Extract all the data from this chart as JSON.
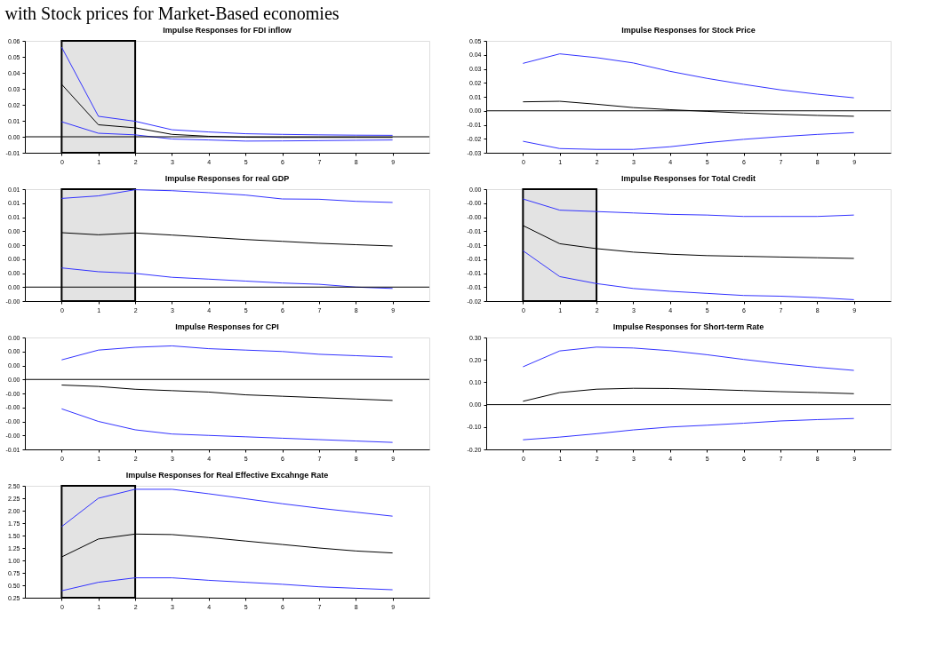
{
  "chart_data": [
    {
      "type": "line",
      "title": "Impulse Responses for FDI inflow",
      "annotations": [
        "with Stock prices for Market-Based economies"
      ],
      "x": [
        0,
        1,
        2,
        3,
        4,
        5,
        6,
        7,
        8,
        9
      ],
      "xlim": [
        -1,
        10
      ],
      "xticks": [
        0,
        1,
        2,
        3,
        4,
        5,
        6,
        7,
        8,
        9
      ],
      "ylim": [
        -0.01,
        0.06
      ],
      "yticks": [
        {
          "value": -0.01,
          "label": "-0.01"
        },
        {
          "value": 0,
          "label": "0.00"
        },
        {
          "value": 0.01,
          "label": "0.01"
        },
        {
          "value": 0.02,
          "label": "0.02"
        },
        {
          "value": 0.03,
          "label": "0.03"
        },
        {
          "value": 0.04,
          "label": "0.04"
        },
        {
          "value": 0.05,
          "label": "0.05"
        },
        {
          "value": 0.06,
          "label": "0.06"
        }
      ],
      "ref_lines": [
        {
          "axis": "y",
          "value": 0,
          "color": "#000000"
        }
      ],
      "bands": [
        {
          "axis": "x",
          "from": 0,
          "to": 2,
          "color": "#e3e3e3"
        }
      ],
      "series": [
        {
          "color": "#3333ff",
          "values": [
            0.056,
            0.0128,
            0.0097,
            0.0044,
            0.003,
            0.0019,
            0.0015,
            0.0012,
            0.001,
            0.0009
          ]
        },
        {
          "color": "#000000",
          "values": [
            0.0328,
            0.0075,
            0.0056,
            0.0015,
            0.0003,
            -0.0003,
            -0.0004,
            -0.0004,
            -0.0004,
            -0.0004
          ]
        },
        {
          "color": "#3333ff",
          "values": [
            0.0094,
            0.0022,
            0.0012,
            -0.0014,
            -0.002,
            -0.0027,
            -0.0026,
            -0.0024,
            -0.0022,
            -0.002
          ]
        }
      ]
    },
    {
      "type": "line",
      "title": "Impulse Responses for Stock Price",
      "x": [
        0,
        1,
        2,
        3,
        4,
        5,
        6,
        7,
        8,
        9
      ],
      "xlim": [
        -1,
        10
      ],
      "xticks": [
        0,
        1,
        2,
        3,
        4,
        5,
        6,
        7,
        8,
        9
      ],
      "ylim": [
        -0.03,
        0.05
      ],
      "yticks": [
        {
          "value": -0.03,
          "label": "-0.03"
        },
        {
          "value": -0.02,
          "label": "-0.02"
        },
        {
          "value": -0.01,
          "label": "-0.01"
        },
        {
          "value": 0,
          "label": "0.00"
        },
        {
          "value": 0.01,
          "label": "0.01"
        },
        {
          "value": 0.02,
          "label": "0.02"
        },
        {
          "value": 0.03,
          "label": "0.03"
        },
        {
          "value": 0.04,
          "label": "0.04"
        },
        {
          "value": 0.05,
          "label": "0.05"
        }
      ],
      "ref_lines": [
        {
          "axis": "y",
          "value": 0,
          "color": "#000000"
        }
      ],
      "series": [
        {
          "color": "#3333ff",
          "values": [
            0.0339,
            0.0407,
            0.038,
            0.0342,
            0.0282,
            0.0232,
            0.0189,
            0.015,
            0.0119,
            0.0093
          ]
        },
        {
          "color": "#000000",
          "values": [
            0.0064,
            0.0068,
            0.0047,
            0.0023,
            0.0008,
            -0.0004,
            -0.0016,
            -0.0025,
            -0.0033,
            -0.0039
          ]
        },
        {
          "color": "#3333ff",
          "values": [
            -0.0218,
            -0.027,
            -0.0276,
            -0.0276,
            -0.0257,
            -0.0228,
            -0.0204,
            -0.0185,
            -0.0169,
            -0.0156
          ]
        }
      ]
    },
    {
      "type": "line",
      "title": "Impulse Responses for real GDP",
      "x": [
        0,
        1,
        2,
        3,
        4,
        5,
        6,
        7,
        8,
        9
      ],
      "xlim": [
        -1,
        10
      ],
      "xticks": [
        0,
        1,
        2,
        3,
        4,
        5,
        6,
        7,
        8,
        9
      ],
      "ylim": [
        -0.001,
        0.007
      ],
      "yticks": [
        {
          "value": -0.001,
          "label": "-0.00"
        },
        {
          "value": 0,
          "label": "0.00"
        },
        {
          "value": 0.001,
          "label": "0.00"
        },
        {
          "value": 0.002,
          "label": "0.00"
        },
        {
          "value": 0.003,
          "label": "0.00"
        },
        {
          "value": 0.004,
          "label": "0.00"
        },
        {
          "value": 0.005,
          "label": "0.01"
        },
        {
          "value": 0.006,
          "label": "0.01"
        },
        {
          "value": 0.007,
          "label": "0.01"
        }
      ],
      "ref_lines": [
        {
          "axis": "y",
          "value": 0,
          "color": "#000000"
        }
      ],
      "bands": [
        {
          "axis": "x",
          "from": 0,
          "to": 2,
          "color": "#e3e3e3"
        }
      ],
      "series": [
        {
          "color": "#3333ff",
          "values": [
            0.00634,
            0.00652,
            0.00696,
            0.00689,
            0.00675,
            0.00658,
            0.0063,
            0.00628,
            0.00613,
            0.00605
          ]
        },
        {
          "color": "#000000",
          "values": [
            0.00389,
            0.00374,
            0.00387,
            0.00372,
            0.00356,
            0.0034,
            0.00327,
            0.00313,
            0.00303,
            0.00294
          ]
        },
        {
          "color": "#3333ff",
          "values": [
            0.00137,
            0.0011,
            0.00098,
            0.0007,
            0.00057,
            0.00043,
            0.00029,
            0.0002,
            0.0,
            -0.0001
          ]
        }
      ]
    },
    {
      "type": "line",
      "title": "Impulse Responses for Total Credit",
      "x": [
        0,
        1,
        2,
        3,
        4,
        5,
        6,
        7,
        8,
        9
      ],
      "xlim": [
        -1,
        10
      ],
      "xticks": [
        0,
        1,
        2,
        3,
        4,
        5,
        6,
        7,
        8,
        9
      ],
      "ylim": [
        -0.016,
        0
      ],
      "yticks": [
        {
          "value": -0.016,
          "label": "-0.02"
        },
        {
          "value": -0.014,
          "label": "-0.01"
        },
        {
          "value": -0.012,
          "label": "-0.01"
        },
        {
          "value": -0.01,
          "label": "-0.01"
        },
        {
          "value": -0.008,
          "label": "-0.01"
        },
        {
          "value": -0.006,
          "label": "-0.01"
        },
        {
          "value": -0.004,
          "label": "-0.00"
        },
        {
          "value": -0.002,
          "label": "-0.00"
        },
        {
          "value": 0,
          "label": "0.00"
        }
      ],
      "bands": [
        {
          "axis": "x",
          "from": 0,
          "to": 2,
          "color": "#e3e3e3"
        }
      ],
      "series": [
        {
          "color": "#3333ff",
          "values": [
            -0.0014,
            -0.003,
            -0.0032,
            -0.0034,
            -0.0036,
            -0.0037,
            -0.0039,
            -0.0039,
            -0.0039,
            -0.0037
          ]
        },
        {
          "color": "#000000",
          "values": [
            -0.0052,
            -0.0078,
            -0.0085,
            -0.009,
            -0.0093,
            -0.0095,
            -0.0096,
            -0.0097,
            -0.0098,
            -0.0099
          ]
        },
        {
          "color": "#3333ff",
          "values": [
            -0.0088,
            -0.0125,
            -0.0135,
            -0.0142,
            -0.0146,
            -0.0149,
            -0.0152,
            -0.0153,
            -0.0155,
            -0.0158
          ]
        }
      ]
    },
    {
      "type": "line",
      "title": "Impulse Responses for CPI",
      "x": [
        0,
        1,
        2,
        3,
        4,
        5,
        6,
        7,
        8,
        9
      ],
      "xlim": [
        -1,
        10
      ],
      "xticks": [
        0,
        1,
        2,
        3,
        4,
        5,
        6,
        7,
        8,
        9
      ],
      "ylim": [
        -0.005,
        0.003
      ],
      "yticks": [
        {
          "value": -0.005,
          "label": "-0.01"
        },
        {
          "value": -0.004,
          "label": "-0.00"
        },
        {
          "value": -0.003,
          "label": "-0.00"
        },
        {
          "value": -0.002,
          "label": "-0.00"
        },
        {
          "value": -0.001,
          "label": "-0.00"
        },
        {
          "value": 0,
          "label": "0.00"
        },
        {
          "value": 0.001,
          "label": "0.00"
        },
        {
          "value": 0.002,
          "label": "0.00"
        },
        {
          "value": 0.003,
          "label": "0.00"
        }
      ],
      "ref_lines": [
        {
          "axis": "y",
          "value": 0,
          "color": "#000000"
        }
      ],
      "series": [
        {
          "color": "#3333ff",
          "values": [
            0.0014,
            0.0021,
            0.0023,
            0.0024,
            0.0022,
            0.0021,
            0.002,
            0.0018,
            0.0017,
            0.0016
          ]
        },
        {
          "color": "#000000",
          "values": [
            -0.0004,
            -0.0005,
            -0.0007,
            -0.0008,
            -0.0009,
            -0.0011,
            -0.0012,
            -0.0013,
            -0.0014,
            -0.0015
          ]
        },
        {
          "color": "#3333ff",
          "values": [
            -0.0021,
            -0.003,
            -0.0036,
            -0.0039,
            -0.004,
            -0.0041,
            -0.0042,
            -0.0043,
            -0.0044,
            -0.0045
          ]
        }
      ]
    },
    {
      "type": "line",
      "title": "Impulse Responses for Short-term Rate",
      "x": [
        0,
        1,
        2,
        3,
        4,
        5,
        6,
        7,
        8,
        9
      ],
      "xlim": [
        -1,
        10
      ],
      "xticks": [
        0,
        1,
        2,
        3,
        4,
        5,
        6,
        7,
        8,
        9
      ],
      "ylim": [
        -0.2,
        0.3
      ],
      "yticks": [
        {
          "value": -0.2,
          "label": "-0.20"
        },
        {
          "value": -0.1,
          "label": "-0.10"
        },
        {
          "value": 0,
          "label": "0.00"
        },
        {
          "value": 0.1,
          "label": "0.10"
        },
        {
          "value": 0.2,
          "label": "0.20"
        },
        {
          "value": 0.3,
          "label": "0.30"
        }
      ],
      "ref_lines": [
        {
          "axis": "y",
          "value": 0,
          "color": "#000000"
        }
      ],
      "series": [
        {
          "color": "#3333ff",
          "values": [
            0.169,
            0.24,
            0.257,
            0.253,
            0.241,
            0.223,
            0.202,
            0.183,
            0.167,
            0.153
          ]
        },
        {
          "color": "#000000",
          "values": [
            0.015,
            0.054,
            0.069,
            0.073,
            0.072,
            0.068,
            0.063,
            0.058,
            0.054,
            0.049
          ]
        },
        {
          "color": "#3333ff",
          "values": [
            -0.157,
            -0.145,
            -0.13,
            -0.113,
            -0.1,
            -0.092,
            -0.083,
            -0.073,
            -0.067,
            -0.062
          ]
        }
      ]
    },
    {
      "type": "line",
      "title": "Impulse Responses for Real Effective Excahnge Rate",
      "x": [
        0,
        1,
        2,
        3,
        4,
        5,
        6,
        7,
        8,
        9
      ],
      "xlim": [
        -1,
        10
      ],
      "xticks": [
        0,
        1,
        2,
        3,
        4,
        5,
        6,
        7,
        8,
        9
      ],
      "ylim": [
        0.25,
        2.5
      ],
      "yticks": [
        {
          "value": 0.25,
          "label": "0.25"
        },
        {
          "value": 0.5,
          "label": "0.50"
        },
        {
          "value": 0.75,
          "label": "0.75"
        },
        {
          "value": 1,
          "label": "1.00"
        },
        {
          "value": 1.25,
          "label": "1.25"
        },
        {
          "value": 1.5,
          "label": "1.50"
        },
        {
          "value": 1.75,
          "label": "1.75"
        },
        {
          "value": 2,
          "label": "2.00"
        },
        {
          "value": 2.25,
          "label": "2.25"
        },
        {
          "value": 2.5,
          "label": "2.50"
        }
      ],
      "bands": [
        {
          "axis": "x",
          "from": 0,
          "to": 2,
          "color": "#e3e3e3"
        }
      ],
      "series": [
        {
          "color": "#3333ff",
          "values": [
            1.68,
            2.25,
            2.43,
            2.43,
            2.34,
            2.24,
            2.14,
            2.05,
            1.97,
            1.89
          ]
        },
        {
          "color": "#000000",
          "values": [
            1.07,
            1.43,
            1.53,
            1.52,
            1.46,
            1.39,
            1.32,
            1.25,
            1.19,
            1.15
          ]
        },
        {
          "color": "#3333ff",
          "values": [
            0.39,
            0.56,
            0.65,
            0.65,
            0.6,
            0.56,
            0.52,
            0.47,
            0.44,
            0.41
          ]
        }
      ]
    }
  ]
}
